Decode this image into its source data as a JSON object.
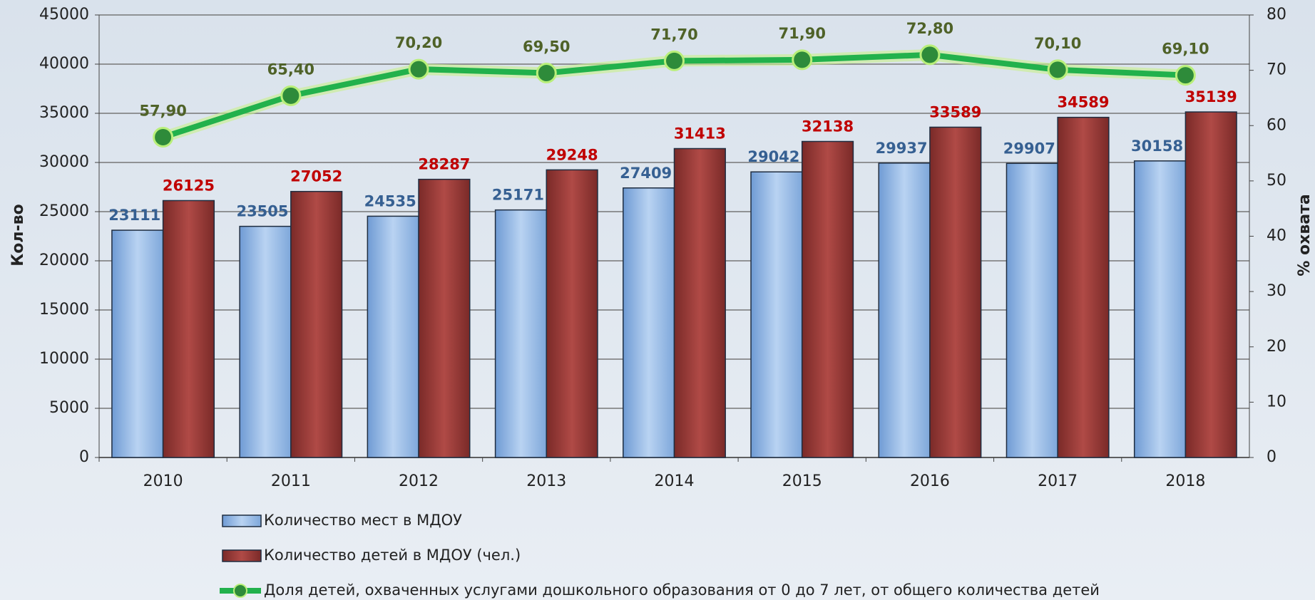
{
  "chart_data": {
    "type": "bar-line",
    "categories": [
      "2010",
      "2011",
      "2012",
      "2013",
      "2014",
      "2015",
      "2016",
      "2017",
      "2018"
    ],
    "series": [
      {
        "name": "Количество мест в МДОУ",
        "color": "#8db4e2",
        "values": [
          23111,
          23505,
          24535,
          25171,
          27409,
          29042,
          29937,
          29907,
          30158
        ]
      },
      {
        "name": "Количество детей в МДОУ (чел.)",
        "color": "#953735",
        "values": [
          26125,
          27052,
          28287,
          29248,
          31413,
          32138,
          33589,
          34589,
          35139
        ]
      },
      {
        "name": "Доля детей, охваченных услугами дошкольного образования от 0 до 7 лет, от общего количества детей",
        "color": "#22b14c",
        "axis": "y2",
        "type": "line",
        "values": [
          57.9,
          65.4,
          70.2,
          69.5,
          71.7,
          71.9,
          72.8,
          70.1,
          69.1
        ],
        "value_labels": [
          "57,90",
          "65,40",
          "70,20",
          "69,50",
          "71,70",
          "71,90",
          "72,80",
          "70,10",
          "69,10"
        ]
      }
    ],
    "y_label": "Кол-во",
    "y2_label": "% охвата",
    "ylim": [
      0,
      45000
    ],
    "yticks": [
      0,
      5000,
      10000,
      15000,
      20000,
      25000,
      30000,
      35000,
      40000,
      45000
    ],
    "y2lim": [
      0,
      80
    ],
    "y2ticks": [
      0,
      10,
      20,
      30,
      40,
      50,
      60,
      70,
      80
    ],
    "grid": true
  }
}
